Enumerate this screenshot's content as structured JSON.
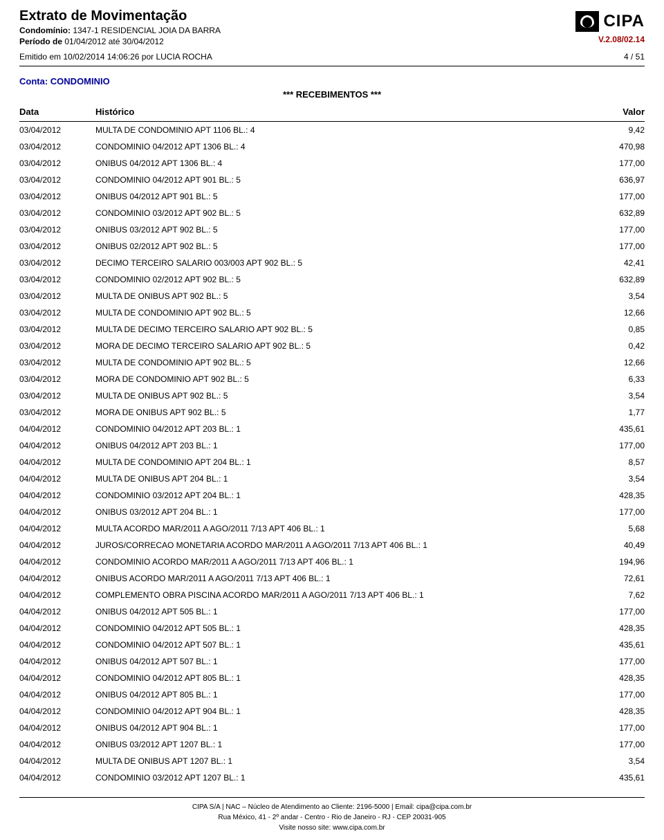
{
  "header": {
    "title": "Extrato de Movimentação",
    "condo_label": "Condomínio:",
    "condo_value": "1347-1 RESIDENCIAL JOIA DA BARRA",
    "period_label": "Período de",
    "period_value": "01/04/2012 até 30/04/2012",
    "emitted": "Emitido em 10/02/2014 14:06:26 por LUCIA ROCHA",
    "page": "4 / 51",
    "brand": "CIPA",
    "version": "V.2.08/02.14"
  },
  "account": {
    "label": "Conta:",
    "name": "CONDOMINIO"
  },
  "section_title": "*** RECEBIMENTOS ***",
  "columns": {
    "data": "Data",
    "historico": "Histórico",
    "valor": "Valor"
  },
  "rows": [
    {
      "data": "03/04/2012",
      "hist": "MULTA DE CONDOMINIO   APT 1106 BL.: 4",
      "valor": "9,42"
    },
    {
      "data": "03/04/2012",
      "hist": "CONDOMINIO 04/2012  APT 1306 BL.: 4",
      "valor": "470,98"
    },
    {
      "data": "03/04/2012",
      "hist": "ONIBUS 04/2012  APT 1306 BL.: 4",
      "valor": "177,00"
    },
    {
      "data": "03/04/2012",
      "hist": "CONDOMINIO 04/2012  APT 901 BL.: 5",
      "valor": "636,97"
    },
    {
      "data": "03/04/2012",
      "hist": "ONIBUS 04/2012  APT 901 BL.: 5",
      "valor": "177,00"
    },
    {
      "data": "03/04/2012",
      "hist": "CONDOMINIO 03/2012  APT 902 BL.: 5",
      "valor": "632,89"
    },
    {
      "data": "03/04/2012",
      "hist": "ONIBUS 03/2012  APT 902 BL.: 5",
      "valor": "177,00"
    },
    {
      "data": "03/04/2012",
      "hist": "ONIBUS 02/2012  APT 902 BL.: 5",
      "valor": "177,00"
    },
    {
      "data": "03/04/2012",
      "hist": "DECIMO TERCEIRO SALARIO 003/003  APT 902 BL.: 5",
      "valor": "42,41"
    },
    {
      "data": "03/04/2012",
      "hist": "CONDOMINIO 02/2012  APT 902 BL.: 5",
      "valor": "632,89"
    },
    {
      "data": "03/04/2012",
      "hist": "MULTA DE ONIBUS   APT 902 BL.: 5",
      "valor": "3,54"
    },
    {
      "data": "03/04/2012",
      "hist": "MULTA DE CONDOMINIO   APT 902 BL.: 5",
      "valor": "12,66"
    },
    {
      "data": "03/04/2012",
      "hist": "MULTA DE DECIMO TERCEIRO SALARIO   APT 902 BL.: 5",
      "valor": "0,85"
    },
    {
      "data": "03/04/2012",
      "hist": "MORA DE DECIMO TERCEIRO SALARIO   APT 902 BL.: 5",
      "valor": "0,42"
    },
    {
      "data": "03/04/2012",
      "hist": "MULTA DE CONDOMINIO   APT 902 BL.: 5",
      "valor": "12,66"
    },
    {
      "data": "03/04/2012",
      "hist": "MORA DE CONDOMINIO   APT 902 BL.: 5",
      "valor": "6,33"
    },
    {
      "data": "03/04/2012",
      "hist": "MULTA DE ONIBUS   APT 902 BL.: 5",
      "valor": "3,54"
    },
    {
      "data": "03/04/2012",
      "hist": "MORA DE ONIBUS   APT 902 BL.: 5",
      "valor": "1,77"
    },
    {
      "data": "04/04/2012",
      "hist": "CONDOMINIO 04/2012  APT 203 BL.: 1",
      "valor": "435,61"
    },
    {
      "data": "04/04/2012",
      "hist": "ONIBUS 04/2012  APT 203 BL.: 1",
      "valor": "177,00"
    },
    {
      "data": "04/04/2012",
      "hist": "MULTA DE CONDOMINIO   APT 204 BL.: 1",
      "valor": "8,57"
    },
    {
      "data": "04/04/2012",
      "hist": "MULTA DE ONIBUS   APT 204 BL.: 1",
      "valor": "3,54"
    },
    {
      "data": "04/04/2012",
      "hist": "CONDOMINIO 03/2012  APT 204 BL.: 1",
      "valor": "428,35"
    },
    {
      "data": "04/04/2012",
      "hist": "ONIBUS 03/2012  APT 204 BL.: 1",
      "valor": "177,00"
    },
    {
      "data": "04/04/2012",
      "hist": "MULTA ACORDO MAR/2011 A AGO/2011 7/13  APT 406 BL.: 1",
      "valor": "5,68"
    },
    {
      "data": "04/04/2012",
      "hist": "JUROS/CORRECAO MONETARIA ACORDO MAR/2011 A AGO/2011 7/13  APT 406 BL.: 1",
      "valor": "40,49"
    },
    {
      "data": "04/04/2012",
      "hist": "CONDOMINIO ACORDO MAR/2011 A AGO/2011 7/13  APT 406 BL.: 1",
      "valor": "194,96"
    },
    {
      "data": "04/04/2012",
      "hist": "ONIBUS ACORDO MAR/2011 A AGO/2011 7/13  APT 406 BL.: 1",
      "valor": "72,61"
    },
    {
      "data": "04/04/2012",
      "hist": "COMPLEMENTO OBRA PISCINA ACORDO MAR/2011 A AGO/2011 7/13  APT 406 BL.: 1",
      "valor": "7,62"
    },
    {
      "data": "04/04/2012",
      "hist": "ONIBUS 04/2012  APT 505 BL.: 1",
      "valor": "177,00"
    },
    {
      "data": "04/04/2012",
      "hist": "CONDOMINIO 04/2012  APT 505 BL.: 1",
      "valor": "428,35"
    },
    {
      "data": "04/04/2012",
      "hist": "CONDOMINIO 04/2012  APT 507 BL.: 1",
      "valor": "435,61"
    },
    {
      "data": "04/04/2012",
      "hist": "ONIBUS 04/2012  APT 507 BL.: 1",
      "valor": "177,00"
    },
    {
      "data": "04/04/2012",
      "hist": "CONDOMINIO 04/2012  APT 805 BL.: 1",
      "valor": "428,35"
    },
    {
      "data": "04/04/2012",
      "hist": "ONIBUS 04/2012  APT 805 BL.: 1",
      "valor": "177,00"
    },
    {
      "data": "04/04/2012",
      "hist": "CONDOMINIO 04/2012  APT 904 BL.: 1",
      "valor": "428,35"
    },
    {
      "data": "04/04/2012",
      "hist": "ONIBUS 04/2012  APT 904 BL.: 1",
      "valor": "177,00"
    },
    {
      "data": "04/04/2012",
      "hist": "ONIBUS 03/2012  APT 1207 BL.: 1",
      "valor": "177,00"
    },
    {
      "data": "04/04/2012",
      "hist": "MULTA DE ONIBUS   APT 1207 BL.: 1",
      "valor": "3,54"
    },
    {
      "data": "04/04/2012",
      "hist": "CONDOMINIO 03/2012  APT 1207 BL.: 1",
      "valor": "435,61"
    }
  ],
  "footer": {
    "line1": "CIPA S/A    |    NAC – Núcleo de Atendimento ao Cliente: 2196-5000    |    Email: cipa@cipa.com.br",
    "line2": "Rua México, 41 - 2º andar - Centro - Rio de Janeiro - RJ - CEP 20031-905",
    "line3": "Visite nosso site: www.cipa.com.br"
  }
}
